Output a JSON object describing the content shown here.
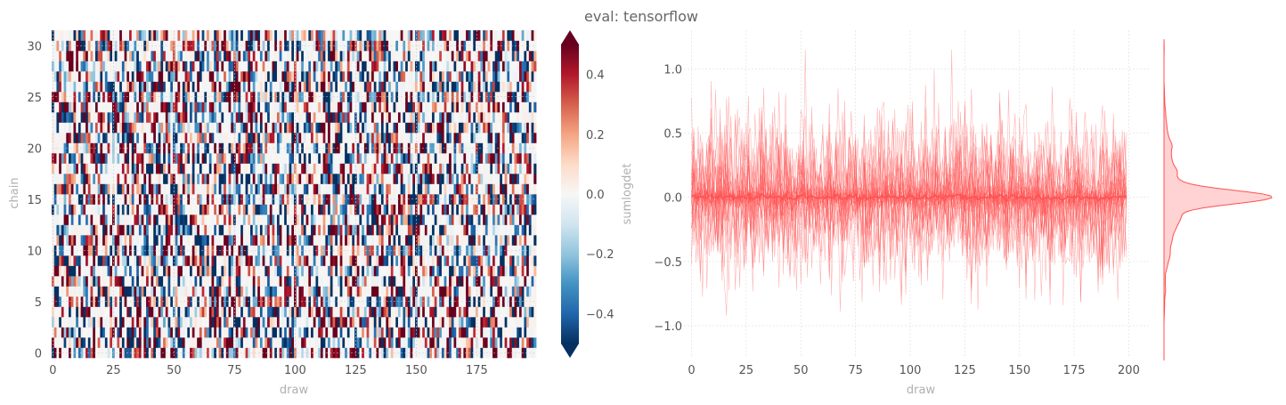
{
  "figure": {
    "title": "eval: tensorflow"
  },
  "chart_data": [
    {
      "type": "heatmap",
      "xlabel": "draw",
      "ylabel": "chain",
      "colorbar_label": "sumlogdet",
      "x_range": [
        0,
        199
      ],
      "y_range": [
        0,
        31
      ],
      "x_ticks": [
        0,
        25,
        50,
        75,
        100,
        125,
        150,
        175
      ],
      "y_ticks": [
        0,
        5,
        10,
        15,
        20,
        25,
        30
      ],
      "n_draws": 200,
      "n_chains": 32,
      "colormap": "RdBu_r",
      "colorbar_range": [
        -0.5,
        0.5
      ],
      "colorbar_ticks": [
        "−0.4",
        "−0.2",
        "0.0",
        "0.2",
        "0.4"
      ],
      "colorbar_tick_values": [
        -0.4,
        -0.2,
        0.0,
        0.2,
        0.4
      ],
      "colorbar_extend": "both",
      "grid": true
    },
    {
      "type": "line",
      "xlabel": "draw",
      "ylabel": "",
      "x_ticks": [
        0,
        25,
        50,
        75,
        100,
        125,
        150,
        175,
        200
      ],
      "y_ticks": [
        "−1.0",
        "−0.5",
        "0.0",
        "0.5",
        "1.0"
      ],
      "y_tick_values": [
        -1.0,
        -0.5,
        0.0,
        0.5,
        1.0
      ],
      "xlim": [
        -10,
        210
      ],
      "ylim": [
        -1.25,
        1.3
      ],
      "n_draws": 200,
      "n_chains": 32,
      "line_color": "#ff4f4f",
      "mean_series_value": 0.0,
      "y_data_range": [
        -1.0,
        1.15
      ],
      "grid": true,
      "marginal": {
        "type": "kde",
        "orientation": "horizontal",
        "peak_at": 0.0,
        "range": [
          -1.27,
          1.23
        ]
      }
    }
  ]
}
